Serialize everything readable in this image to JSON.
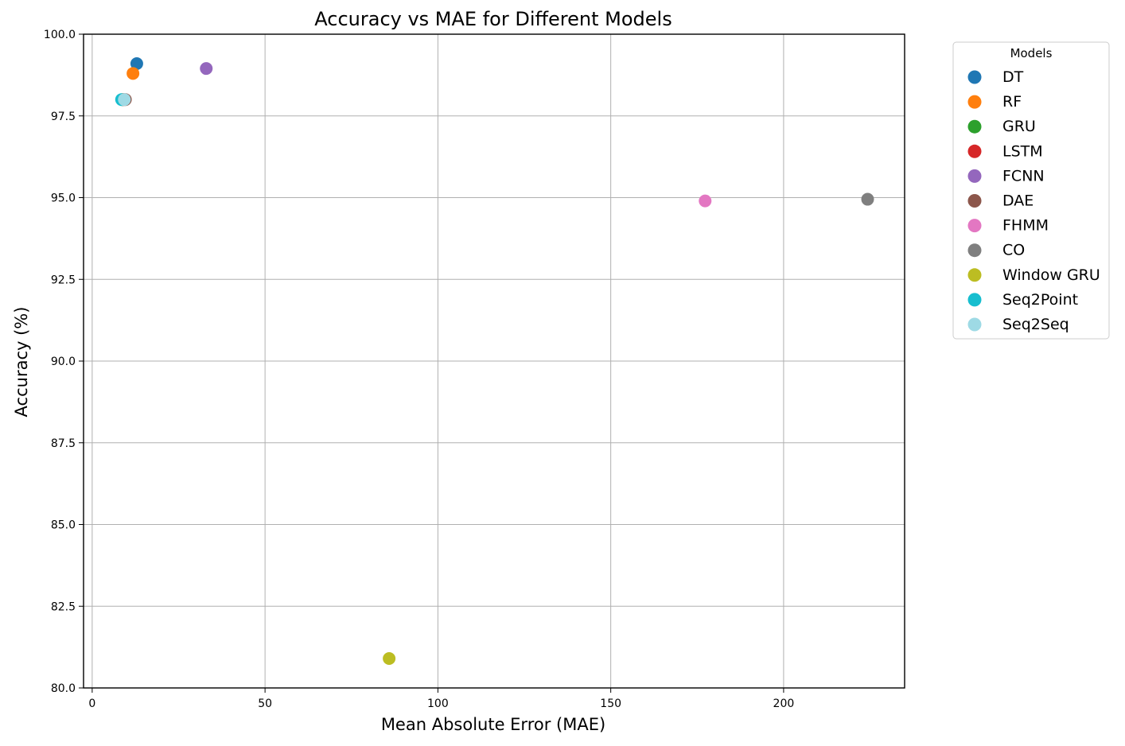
{
  "chart_data": {
    "type": "scatter",
    "title": "Accuracy vs MAE for Different Models",
    "xlabel": "Mean Absolute Error (MAE)",
    "ylabel": "Accuracy (%)",
    "xlim": [
      -2.5,
      235
    ],
    "ylim": [
      80.0,
      100.0
    ],
    "xticks": [
      0,
      50,
      100,
      150,
      200
    ],
    "xtick_labels": [
      "0",
      "50",
      "100",
      "150",
      "200"
    ],
    "yticks": [
      80.0,
      82.5,
      85.0,
      87.5,
      90.0,
      92.5,
      95.0,
      97.5,
      100.0
    ],
    "ytick_labels": [
      "80.0",
      "82.5",
      "85.0",
      "87.5",
      "90.0",
      "92.5",
      "95.0",
      "97.5",
      "100.0"
    ],
    "grid": true,
    "legend_title": "Models",
    "legend_position": "outside-top-right",
    "series": [
      {
        "name": "DT",
        "color": "#1f77b4",
        "x": 12.9,
        "y": 99.1
      },
      {
        "name": "RF",
        "color": "#ff7f0e",
        "x": 11.8,
        "y": 98.8
      },
      {
        "name": "GRU",
        "color": "#2ca02c",
        "x": 8.8,
        "y": 98.0
      },
      {
        "name": "LSTM",
        "color": "#d62728",
        "x": 9.0,
        "y": 98.0
      },
      {
        "name": "FCNN",
        "color": "#9467bd",
        "x": 33.0,
        "y": 98.95
      },
      {
        "name": "DAE",
        "color": "#8c564b",
        "x": 9.6,
        "y": 98.0
      },
      {
        "name": "FHMM",
        "color": "#e377c2",
        "x": 177.3,
        "y": 94.9
      },
      {
        "name": "CO",
        "color": "#7f7f7f",
        "x": 224.3,
        "y": 94.95
      },
      {
        "name": "Window GRU",
        "color": "#bcbd22",
        "x": 85.9,
        "y": 80.9
      },
      {
        "name": "Seq2Point",
        "color": "#17becf",
        "x": 8.5,
        "y": 98.0
      },
      {
        "name": "Seq2Seq",
        "color": "#9edae5",
        "x": 9.3,
        "y": 98.0
      }
    ]
  }
}
